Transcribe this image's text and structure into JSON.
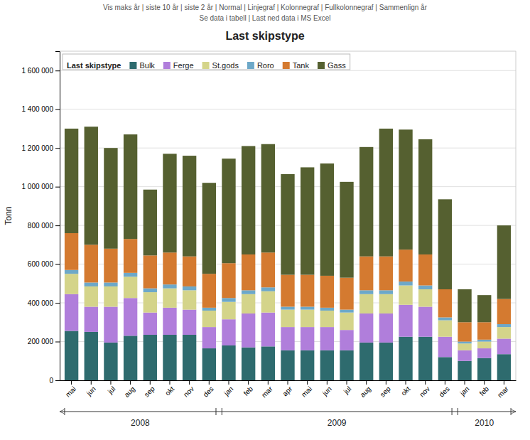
{
  "chart_data": {
    "type": "bar",
    "stacked": true,
    "title": "Last skipstype",
    "annotations": [
      "Vis maks år  |  siste 10 år  |  siste 2 år  |  Normal  |  Linjegraf  |  Kolonnegraf  |  Fullkolonnegraf  |  Sammenlign år",
      "Se data i tabell  |  Last ned data i MS Excel"
    ],
    "y_label": "Tonn",
    "categories": [
      "mai",
      "jun",
      "jul",
      "aug",
      "sep",
      "okt",
      "nov",
      "des",
      "jan",
      "feb",
      "mar",
      "apr",
      "mai",
      "jun",
      "jul",
      "aug",
      "sep",
      "okt",
      "nov",
      "des",
      "jan",
      "feb",
      "mar"
    ],
    "series": [
      {
        "name": "Bulk",
        "color": "#2e6b6e",
        "values": [
          255000,
          250000,
          195000,
          230000,
          235000,
          235000,
          235000,
          165000,
          180000,
          170000,
          175000,
          155000,
          155000,
          155000,
          155000,
          195000,
          195000,
          225000,
          225000,
          120000,
          100000,
          115000,
          135000
        ]
      },
      {
        "name": "Ferge",
        "color": "#b07edb",
        "values": [
          190000,
          130000,
          185000,
          195000,
          115000,
          140000,
          130000,
          110000,
          135000,
          175000,
          175000,
          120000,
          120000,
          120000,
          105000,
          150000,
          150000,
          165000,
          155000,
          105000,
          55000,
          50000,
          80000
        ]
      },
      {
        "name": "St.gods",
        "color": "#d4d48a",
        "values": [
          105000,
          105000,
          105000,
          110000,
          105000,
          100000,
          100000,
          85000,
          90000,
          100000,
          110000,
          90000,
          90000,
          85000,
          90000,
          100000,
          100000,
          100000,
          90000,
          85000,
          35000,
          35000,
          60000
        ]
      },
      {
        "name": "Roro",
        "color": "#6da8c8",
        "values": [
          20000,
          20000,
          20000,
          20000,
          20000,
          20000,
          20000,
          15000,
          20000,
          20000,
          20000,
          15000,
          15000,
          15000,
          15000,
          20000,
          20000,
          20000,
          20000,
          15000,
          10000,
          10000,
          15000
        ]
      },
      {
        "name": "Tank",
        "color": "#d47a30",
        "values": [
          190000,
          195000,
          175000,
          175000,
          170000,
          165000,
          155000,
          175000,
          180000,
          185000,
          180000,
          165000,
          165000,
          165000,
          165000,
          175000,
          175000,
          165000,
          160000,
          145000,
          100000,
          90000,
          130000
        ]
      },
      {
        "name": "Gass",
        "color": "#556030",
        "values": [
          540000,
          610000,
          520000,
          540000,
          340000,
          510000,
          520000,
          470000,
          540000,
          560000,
          560000,
          520000,
          555000,
          580000,
          495000,
          565000,
          660000,
          620000,
          595000,
          465000,
          170000,
          140000,
          380000
        ]
      }
    ],
    "ylim": [
      0,
      1700000
    ],
    "yticks": [
      0,
      {
        "value": 200000,
        "label": "200 000"
      },
      {
        "value": 400000,
        "label": "400 000"
      },
      {
        "value": 600000,
        "label": "600 000"
      },
      {
        "value": 800000,
        "label": "800 000"
      },
      {
        "value": 1000000,
        "label": "1 000 000"
      },
      {
        "value": 1200000,
        "label": "1 200 000"
      },
      {
        "value": 1400000,
        "label": "1 400 000"
      },
      {
        "value": 1600000,
        "label": "1 600 000"
      }
    ],
    "grid": true,
    "legend": "upper left",
    "year_groups": [
      {
        "label": "2008",
        "start": 0,
        "end": 7
      },
      {
        "label": "2009",
        "start": 8,
        "end": 19
      },
      {
        "label": "2010",
        "start": 20,
        "end": 22
      }
    ]
  }
}
